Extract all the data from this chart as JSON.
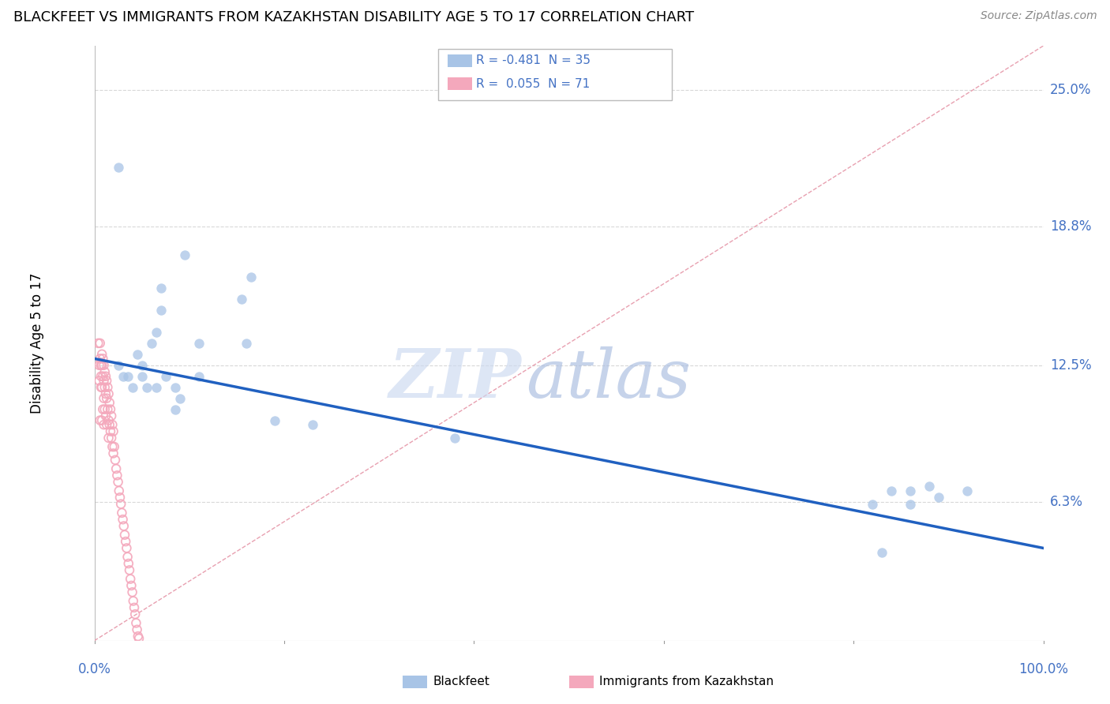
{
  "title": "BLACKFEET VS IMMIGRANTS FROM KAZAKHSTAN DISABILITY AGE 5 TO 17 CORRELATION CHART",
  "source": "Source: ZipAtlas.com",
  "ylabel": "Disability Age 5 to 17",
  "watermark_zip": "ZIP",
  "watermark_atlas": "atlas",
  "xlim": [
    0,
    1.0
  ],
  "ylim": [
    0,
    0.27
  ],
  "yticks": [
    0.063,
    0.125,
    0.188,
    0.25
  ],
  "ytick_labels": [
    "6.3%",
    "12.5%",
    "18.8%",
    "25.0%"
  ],
  "legend1_label": "R = -0.481  N = 35",
  "legend2_label": "R =  0.055  N = 71",
  "blue_scatter_color": "#a8c4e6",
  "pink_scatter_color": "#f4a8bc",
  "blue_line_color": "#2060c0",
  "pink_line_color": "#e87090",
  "diagonal_color": "#cccccc",
  "grid_color": "#d8d8d8",
  "axis_color": "#4472c4",
  "blue_trend_x": [
    0.0,
    1.0
  ],
  "blue_trend_y": [
    0.128,
    0.042
  ],
  "pink_trend_x": [
    0.0,
    1.0
  ],
  "pink_trend_y": [
    0.0,
    0.27
  ],
  "blackfeet_x": [
    0.025,
    0.095,
    0.165,
    0.07,
    0.07,
    0.155,
    0.06,
    0.065,
    0.045,
    0.05,
    0.11,
    0.11,
    0.16,
    0.025,
    0.03,
    0.035,
    0.04,
    0.05,
    0.055,
    0.065,
    0.075,
    0.085,
    0.09,
    0.085,
    0.19,
    0.23,
    0.38,
    0.86,
    0.89,
    0.92,
    0.82,
    0.84,
    0.86,
    0.88,
    0.83
  ],
  "blackfeet_y": [
    0.215,
    0.175,
    0.165,
    0.16,
    0.15,
    0.155,
    0.135,
    0.14,
    0.13,
    0.125,
    0.135,
    0.12,
    0.135,
    0.125,
    0.12,
    0.12,
    0.115,
    0.12,
    0.115,
    0.115,
    0.12,
    0.115,
    0.11,
    0.105,
    0.1,
    0.098,
    0.092,
    0.068,
    0.065,
    0.068,
    0.062,
    0.068,
    0.062,
    0.07,
    0.04
  ],
  "kaz_x": [
    0.004,
    0.005,
    0.005,
    0.006,
    0.006,
    0.006,
    0.007,
    0.007,
    0.007,
    0.008,
    0.008,
    0.008,
    0.008,
    0.009,
    0.009,
    0.009,
    0.01,
    0.01,
    0.01,
    0.01,
    0.011,
    0.011,
    0.011,
    0.012,
    0.012,
    0.012,
    0.013,
    0.013,
    0.013,
    0.014,
    0.014,
    0.015,
    0.015,
    0.015,
    0.016,
    0.016,
    0.017,
    0.017,
    0.018,
    0.018,
    0.019,
    0.019,
    0.02,
    0.02,
    0.021,
    0.022,
    0.023,
    0.024,
    0.025,
    0.026,
    0.027,
    0.028,
    0.029,
    0.03,
    0.031,
    0.032,
    0.033,
    0.034,
    0.035,
    0.036,
    0.037,
    0.038,
    0.039,
    0.04,
    0.041,
    0.042,
    0.043,
    0.044,
    0.045,
    0.046,
    0.047
  ],
  "kaz_y": [
    0.135,
    0.125,
    0.118,
    0.135,
    0.128,
    0.1,
    0.125,
    0.12,
    0.115,
    0.13,
    0.125,
    0.115,
    0.1,
    0.128,
    0.12,
    0.105,
    0.125,
    0.118,
    0.11,
    0.098,
    0.122,
    0.115,
    0.105,
    0.12,
    0.112,
    0.102,
    0.118,
    0.11,
    0.098,
    0.115,
    0.105,
    0.112,
    0.1,
    0.092,
    0.108,
    0.098,
    0.105,
    0.095,
    0.102,
    0.092,
    0.098,
    0.088,
    0.095,
    0.085,
    0.088,
    0.082,
    0.078,
    0.075,
    0.072,
    0.068,
    0.065,
    0.062,
    0.058,
    0.055,
    0.052,
    0.048,
    0.045,
    0.042,
    0.038,
    0.035,
    0.032,
    0.028,
    0.025,
    0.022,
    0.018,
    0.015,
    0.012,
    0.008,
    0.005,
    0.002,
    0.001
  ]
}
